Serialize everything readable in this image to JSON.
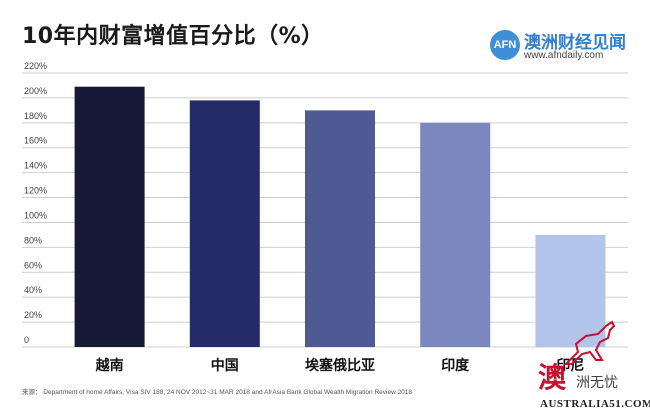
{
  "title": "10年内财富增值百分比（%）",
  "brand": {
    "logo_text": "AFN",
    "name": "澳洲财经见闻",
    "url": "www.afndaily.com"
  },
  "source": "来源： Department of home Affairs, Visa SIV 188, 24 NOV 2012~31 MAR 2018 and AfrAsia Bank Global Wealth Migration Review 2018",
  "corner_logo": {
    "main": "澳",
    "sub": "洲无忧",
    "url": "AUSTRALIA51.COM",
    "icon": "kangaroo-icon"
  },
  "chart_data": {
    "type": "bar",
    "title": "10年内财富增值百分比（%）",
    "categories": [
      "越南",
      "中国",
      "埃塞俄比亚",
      "印度",
      "印尼"
    ],
    "values": [
      209,
      198,
      190,
      180,
      90
    ],
    "colors": [
      "#161a36",
      "#252b66",
      "#4f5a95",
      "#7b88c0",
      "#b3c4ea"
    ],
    "ylim": [
      0,
      220
    ],
    "yticks": [
      "0",
      "20%",
      "40%",
      "60%",
      "80%",
      "100%",
      "120%",
      "140%",
      "160%",
      "180%",
      "200%",
      "220%"
    ],
    "ytick_values": [
      0,
      20,
      40,
      60,
      80,
      100,
      120,
      140,
      160,
      180,
      200,
      220
    ],
    "grid": true,
    "xlabel": "",
    "ylabel": ""
  }
}
